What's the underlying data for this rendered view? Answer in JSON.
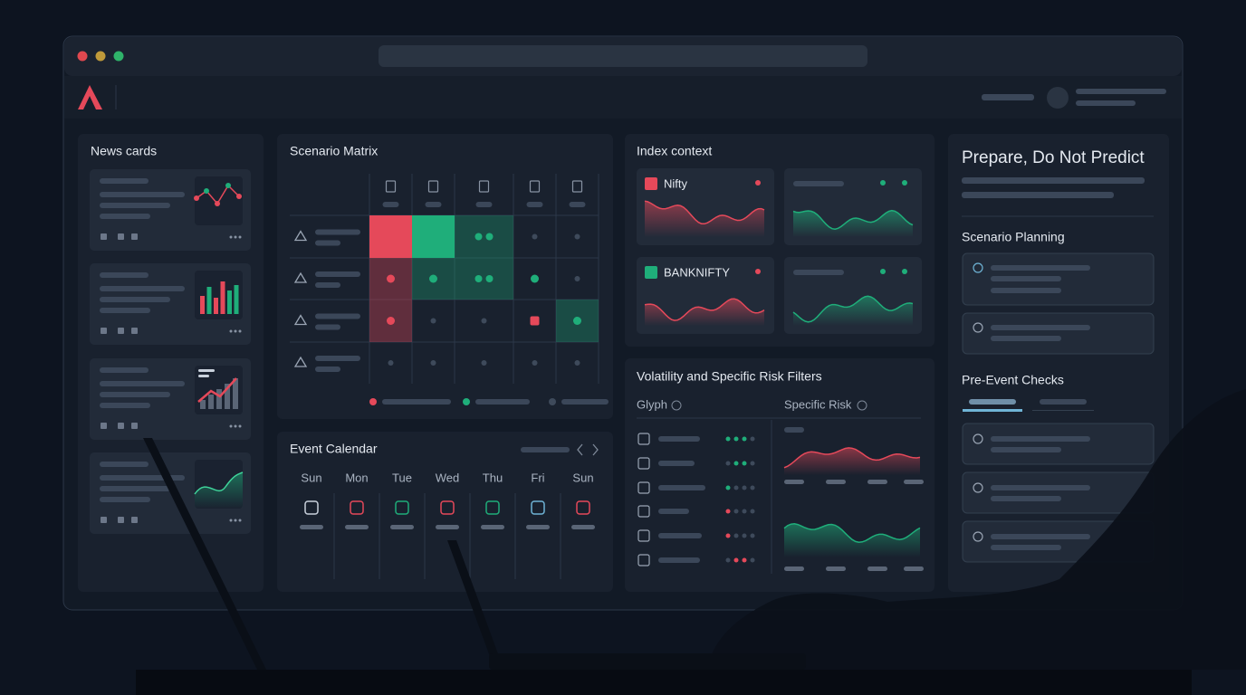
{
  "news_cards": {
    "title": "News cards"
  },
  "scenario_matrix": {
    "title": "Scenario Matrix"
  },
  "event_calendar": {
    "title": "Event Calendar",
    "days": [
      "Sun",
      "Mon",
      "Tue",
      "Wed",
      "Thu",
      "Fri",
      "Sun"
    ]
  },
  "index_context": {
    "title": "Index context",
    "indices": [
      "Nifty",
      "BANKNIFTY"
    ]
  },
  "volatility_filters": {
    "title": "Volatility and Specific Risk Filters",
    "columns": [
      "Glyph",
      "Specific Risk"
    ]
  },
  "sidebar": {
    "title": "Prepare, Do Not Predict",
    "sections": [
      "Scenario Planning",
      "Pre-Event Checks"
    ]
  }
}
